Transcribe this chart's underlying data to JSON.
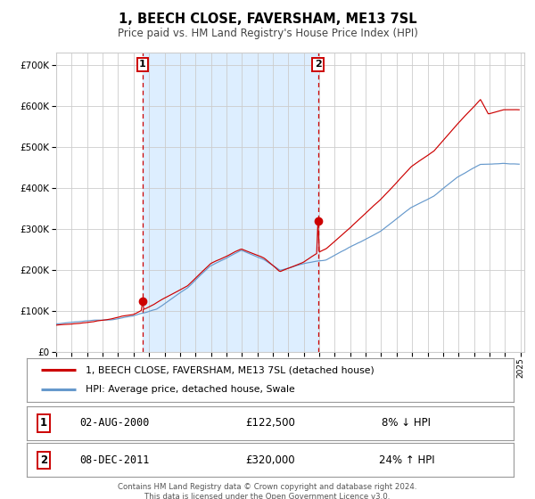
{
  "title": "1, BEECH CLOSE, FAVERSHAM, ME13 7SL",
  "subtitle": "Price paid vs. HM Land Registry's House Price Index (HPI)",
  "y_ticks": [
    0,
    100000,
    200000,
    300000,
    400000,
    500000,
    600000,
    700000
  ],
  "x_start_year": 1995,
  "x_end_year": 2025,
  "ylim": [
    0,
    730000
  ],
  "transaction1_year": 2000,
  "transaction1_month": 8,
  "transaction1_price": 122500,
  "transaction2_year": 2011,
  "transaction2_month": 12,
  "transaction2_price": 320000,
  "legend_line1": "1, BEECH CLOSE, FAVERSHAM, ME13 7SL (detached house)",
  "legend_line2": "HPI: Average price, detached house, Swale",
  "line1_color": "#cc0000",
  "line2_color": "#6699cc",
  "shading_color": "#ddeeff",
  "grid_color": "#cccccc",
  "bg_color": "#ffffff",
  "footnote1": "Contains HM Land Registry data © Crown copyright and database right 2024.",
  "footnote2": "This data is licensed under the Open Government Licence v3.0.",
  "table_row1": [
    "1",
    "02-AUG-2000",
    "£122,500",
    "8% ↓ HPI"
  ],
  "table_row2": [
    "2",
    "08-DEC-2011",
    "£320,000",
    "24% ↑ HPI"
  ]
}
